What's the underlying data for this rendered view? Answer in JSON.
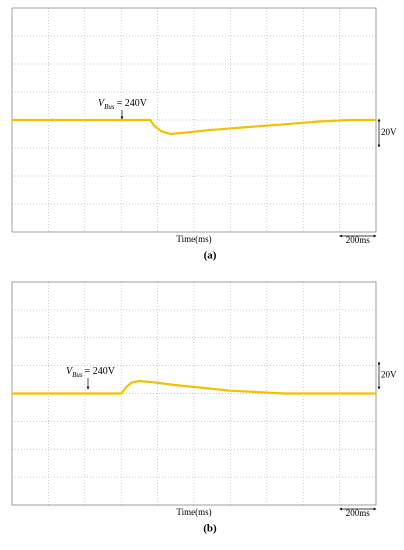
{
  "chart_data": [
    {
      "type": "line",
      "caption": "(a)",
      "x_label": "Time(ms)",
      "time_scale": "200ms",
      "volt_scale": "20V",
      "bus_label": {
        "symbol": "V",
        "subscript": "Bus",
        "value": "= 240V"
      },
      "xlim": [
        0,
        2000
      ],
      "ylim": [
        160,
        320
      ],
      "x": [
        0,
        760,
        780,
        820,
        870,
        950,
        1100,
        1300,
        1500,
        1700,
        1850,
        2000
      ],
      "series": [
        {
          "color": "#f2c200",
          "values": [
            240,
            240,
            236,
            232,
            230,
            231,
            233,
            235,
            237,
            239,
            240,
            240
          ]
        }
      ]
    },
    {
      "type": "line",
      "caption": "(b)",
      "x_label": "Time(ms)",
      "time_scale": "200ms",
      "volt_scale": "20V",
      "bus_label": {
        "symbol": "V",
        "subscript": "Bus",
        "value": "= 240V"
      },
      "xlim": [
        0,
        2000
      ],
      "ylim": [
        160,
        320
      ],
      "x": [
        0,
        600,
        630,
        660,
        700,
        780,
        900,
        1050,
        1200,
        1350,
        1500,
        2000
      ],
      "series": [
        {
          "color": "#f2c200",
          "values": [
            240,
            240,
            245,
            248,
            249,
            248,
            246,
            244,
            242,
            241,
            240,
            240
          ]
        }
      ]
    }
  ]
}
